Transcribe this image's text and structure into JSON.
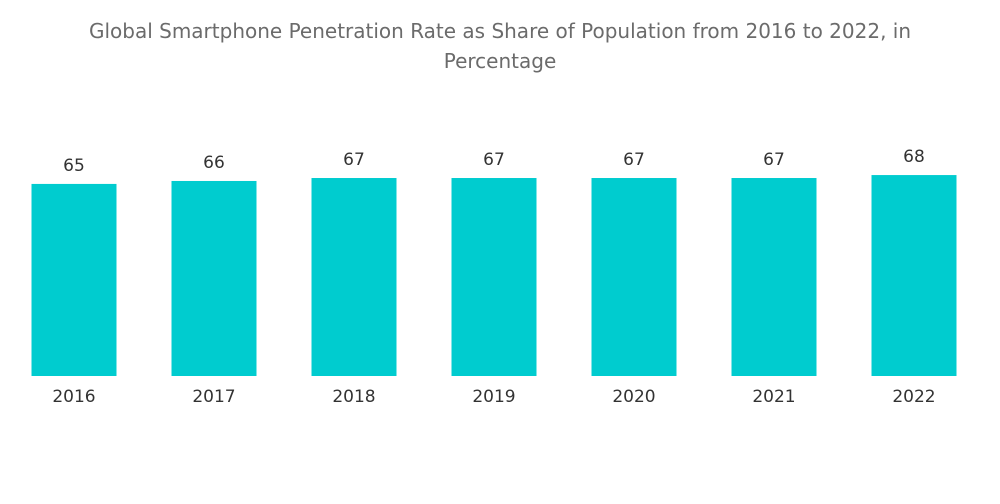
{
  "chart_data": {
    "type": "bar",
    "title": "Global Smartphone Penetration Rate as Share of Population from 2016 to 2022, in Percentage",
    "categories": [
      "2016",
      "2017",
      "2018",
      "2019",
      "2020",
      "2021",
      "2022"
    ],
    "values": [
      65,
      66,
      67,
      67,
      67,
      67,
      68
    ],
    "color": "#00cccf"
  }
}
